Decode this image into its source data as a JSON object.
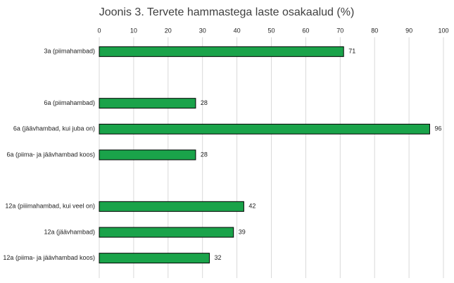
{
  "chart_data": {
    "type": "barh",
    "title": "Joonis 3. Tervete hammastega laste osakaalud (%)",
    "categories": [
      "3a (piimahambad)",
      null,
      "6a (piimahambad)",
      "6a (jäävhambad, kui juba on)",
      "6a (piima- ja jäävhambad koos)",
      null,
      "12a (piiimahambad, kui veel on)",
      "12a (jäävhambad)",
      "12a (piima- ja jäävhambad koos)"
    ],
    "values": [
      71,
      null,
      28,
      96,
      28,
      null,
      42,
      39,
      32
    ],
    "color": "#1aa34a",
    "xlim": [
      0,
      100
    ],
    "xticks": [
      0,
      10,
      20,
      30,
      40,
      50,
      60,
      70,
      80,
      90,
      100
    ],
    "grid": true
  }
}
